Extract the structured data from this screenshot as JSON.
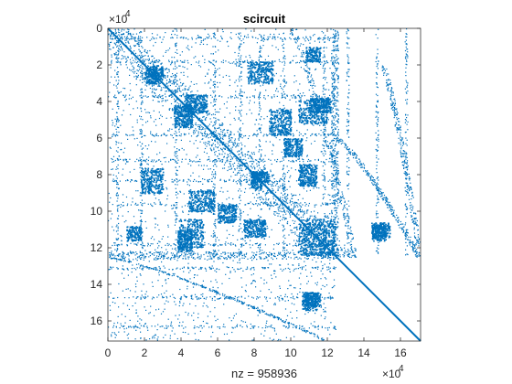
{
  "chart_data": {
    "type": "scatter",
    "subtype": "sparsity-pattern",
    "title": "scircuit",
    "xlabel": "nz = 958936",
    "ylabel": "",
    "matrix_size": 170998,
    "nnz": 958936,
    "multiplier_label": "×10",
    "multiplier_exponent": "4",
    "xlim": [
      0,
      170998
    ],
    "ylim": [
      170998,
      0
    ],
    "y_axis_direction": "reversed",
    "x_ticks": [
      0,
      20000,
      40000,
      60000,
      80000,
      100000,
      120000,
      140000,
      160000
    ],
    "x_tick_labels": [
      "0",
      "2",
      "4",
      "6",
      "8",
      "10",
      "12",
      "14",
      "16"
    ],
    "y_ticks": [
      0,
      20000,
      40000,
      60000,
      80000,
      100000,
      120000,
      140000,
      160000
    ],
    "y_tick_labels": [
      "0",
      "2",
      "4",
      "6",
      "8",
      "10",
      "12",
      "14",
      "16"
    ],
    "grid": false,
    "legend": "none",
    "marker_color": "#0072BD",
    "structure": {
      "diagonal": [
        [
          0,
          0
        ],
        [
          170998,
          170998
        ]
      ],
      "dense_blocks": [
        {
          "rows": [
            20000,
            28000
          ],
          "cols": [
            22000,
            30000
          ]
        },
        {
          "rows": [
            36000,
            46000
          ],
          "cols": [
            42000,
            54000
          ]
        },
        {
          "rows": [
            38000,
            46000
          ],
          "cols": [
            110000,
            122000
          ]
        },
        {
          "rows": [
            76000,
            90000
          ],
          "cols": [
            18000,
            30000
          ]
        },
        {
          "rows": [
            78000,
            84000
          ],
          "cols": [
            78000,
            88000
          ]
        },
        {
          "rows": [
            88000,
            100000
          ],
          "cols": [
            44000,
            58000
          ]
        },
        {
          "rows": [
            104000,
            120000
          ],
          "cols": [
            38000,
            52000
          ]
        },
        {
          "rows": [
            104000,
            114000
          ],
          "cols": [
            74000,
            86000
          ]
        },
        {
          "rows": [
            104000,
            124000
          ],
          "cols": [
            106000,
            124000
          ]
        },
        {
          "rows": [
            106000,
            114000
          ],
          "cols": [
            144000,
            154000
          ]
        },
        {
          "rows": [
            144000,
            152000
          ],
          "cols": [
            108000,
            116000
          ]
        },
        {
          "rows": [
            10000,
            18000
          ],
          "cols": [
            108000,
            116000
          ]
        },
        {
          "rows": [
            60000,
            70000
          ],
          "cols": [
            96000,
            106000
          ]
        }
      ],
      "dense_bands": [
        {
          "orientation": "row",
          "range": [
            122000,
            126000
          ],
          "extent": [
            0,
            170998
          ]
        },
        {
          "orientation": "column",
          "range": [
            122000,
            126000
          ],
          "extent": [
            0,
            170998
          ]
        }
      ],
      "lower_right_empty_below": 125000
    }
  }
}
